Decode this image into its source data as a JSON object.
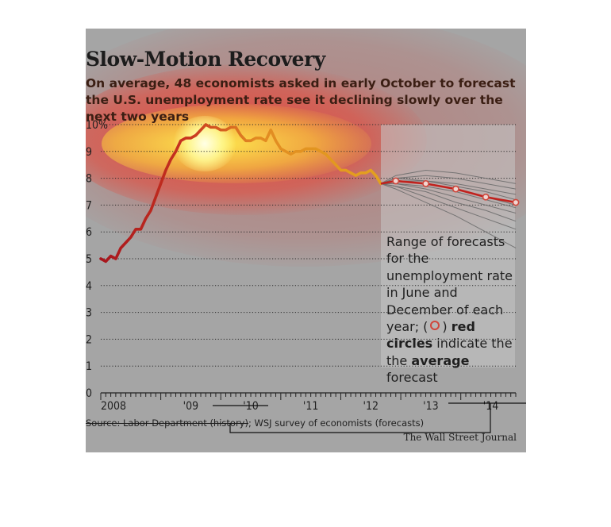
{
  "header": {
    "title": "Slow-Motion Recovery",
    "subtitle": "On average, 48 economists asked in early October to forecast the U.S. unemployment rate see it declining slowly over the next two years"
  },
  "legend_note": {
    "line1": "Range of forecasts for the unemployment rate in June and December of each year; (",
    "line2": ") ",
    "bold1": "red circles",
    "line3": " indicate the the ",
    "bold2": "average",
    "line4": " forecast"
  },
  "footer": {
    "source_struck": "Source: Labor Department (history)",
    "source_rest": "; WSJ survey of economists (forecasts)",
    "credit": "The Wall Street Journal"
  },
  "colors": {
    "history_start": "#a7161d",
    "history_end": "#e3a21f",
    "forecast_line": "#c1211d",
    "forecast_range": "#6e6e6e",
    "average_circle": "#d0463b",
    "background": "#a5a5a5"
  },
  "chart_data": {
    "type": "line",
    "x_start": "2008-01",
    "x_end": "2014-12",
    "ylim": [
      0,
      10
    ],
    "y_ticks": [
      {
        "value": 10,
        "label": "10%"
      },
      {
        "value": 9,
        "label": "9"
      },
      {
        "value": 8,
        "label": "8"
      },
      {
        "value": 7,
        "label": "7"
      },
      {
        "value": 6,
        "label": "6"
      },
      {
        "value": 5,
        "label": "5"
      },
      {
        "value": 4,
        "label": "4"
      },
      {
        "value": 3,
        "label": "3"
      },
      {
        "value": 2,
        "label": "2"
      },
      {
        "value": 1,
        "label": "1"
      },
      {
        "value": 0,
        "label": "0"
      }
    ],
    "x_ticks": [
      {
        "year": 2008,
        "label": "2008"
      },
      {
        "year": 2009,
        "label": "'09"
      },
      {
        "year": 2010,
        "label": "'10"
      },
      {
        "year": 2011,
        "label": "'11"
      },
      {
        "year": 2012,
        "label": "'12"
      },
      {
        "year": 2013,
        "label": "'13"
      },
      {
        "year": 2014,
        "label": "'14"
      }
    ],
    "grid": "dotted horizontal",
    "history": [
      {
        "x": "2008-01",
        "y": 5.0
      },
      {
        "x": "2008-02",
        "y": 4.9
      },
      {
        "x": "2008-03",
        "y": 5.1
      },
      {
        "x": "2008-04",
        "y": 5.0
      },
      {
        "x": "2008-05",
        "y": 5.4
      },
      {
        "x": "2008-06",
        "y": 5.6
      },
      {
        "x": "2008-07",
        "y": 5.8
      },
      {
        "x": "2008-08",
        "y": 6.1
      },
      {
        "x": "2008-09",
        "y": 6.1
      },
      {
        "x": "2008-10",
        "y": 6.5
      },
      {
        "x": "2008-11",
        "y": 6.8
      },
      {
        "x": "2008-12",
        "y": 7.3
      },
      {
        "x": "2009-01",
        "y": 7.8
      },
      {
        "x": "2009-02",
        "y": 8.3
      },
      {
        "x": "2009-03",
        "y": 8.7
      },
      {
        "x": "2009-04",
        "y": 9.0
      },
      {
        "x": "2009-05",
        "y": 9.4
      },
      {
        "x": "2009-06",
        "y": 9.5
      },
      {
        "x": "2009-07",
        "y": 9.5
      },
      {
        "x": "2009-08",
        "y": 9.6
      },
      {
        "x": "2009-09",
        "y": 9.8
      },
      {
        "x": "2009-10",
        "y": 10.0
      },
      {
        "x": "2009-11",
        "y": 9.9
      },
      {
        "x": "2009-12",
        "y": 9.9
      },
      {
        "x": "2010-01",
        "y": 9.8
      },
      {
        "x": "2010-02",
        "y": 9.8
      },
      {
        "x": "2010-03",
        "y": 9.9
      },
      {
        "x": "2010-04",
        "y": 9.9
      },
      {
        "x": "2010-05",
        "y": 9.6
      },
      {
        "x": "2010-06",
        "y": 9.4
      },
      {
        "x": "2010-07",
        "y": 9.4
      },
      {
        "x": "2010-08",
        "y": 9.5
      },
      {
        "x": "2010-09",
        "y": 9.5
      },
      {
        "x": "2010-10",
        "y": 9.4
      },
      {
        "x": "2010-11",
        "y": 9.8
      },
      {
        "x": "2010-12",
        "y": 9.4
      },
      {
        "x": "2011-01",
        "y": 9.1
      },
      {
        "x": "2011-02",
        "y": 9.0
      },
      {
        "x": "2011-03",
        "y": 8.9
      },
      {
        "x": "2011-04",
        "y": 9.0
      },
      {
        "x": "2011-05",
        "y": 9.0
      },
      {
        "x": "2011-06",
        "y": 9.1
      },
      {
        "x": "2011-07",
        "y": 9.1
      },
      {
        "x": "2011-08",
        "y": 9.1
      },
      {
        "x": "2011-09",
        "y": 9.0
      },
      {
        "x": "2011-10",
        "y": 8.9
      },
      {
        "x": "2011-11",
        "y": 8.7
      },
      {
        "x": "2011-12",
        "y": 8.5
      },
      {
        "x": "2012-01",
        "y": 8.3
      },
      {
        "x": "2012-02",
        "y": 8.3
      },
      {
        "x": "2012-03",
        "y": 8.2
      },
      {
        "x": "2012-04",
        "y": 8.1
      },
      {
        "x": "2012-05",
        "y": 8.2
      },
      {
        "x": "2012-06",
        "y": 8.2
      },
      {
        "x": "2012-07",
        "y": 8.3
      },
      {
        "x": "2012-08",
        "y": 8.1
      },
      {
        "x": "2012-09",
        "y": 7.8
      }
    ],
    "average_forecast": [
      {
        "x": "2012-09",
        "y": 7.8
      },
      {
        "x": "2012-12",
        "y": 7.9
      },
      {
        "x": "2013-06",
        "y": 7.8
      },
      {
        "x": "2013-12",
        "y": 7.6
      },
      {
        "x": "2014-06",
        "y": 7.3
      },
      {
        "x": "2014-12",
        "y": 7.1
      }
    ],
    "forecast_range": {
      "x": [
        "2012-09",
        "2012-12",
        "2013-06",
        "2013-12",
        "2014-06",
        "2014-12"
      ],
      "series": [
        [
          7.8,
          8.1,
          8.3,
          8.2,
          8.0,
          7.8
        ],
        [
          7.8,
          8.0,
          8.1,
          8.0,
          7.8,
          7.6
        ],
        [
          7.8,
          8.0,
          7.9,
          7.8,
          7.6,
          7.4
        ],
        [
          7.8,
          7.9,
          7.9,
          7.7,
          7.5,
          7.2
        ],
        [
          7.8,
          7.9,
          7.8,
          7.6,
          7.3,
          7.0
        ],
        [
          7.8,
          7.8,
          7.7,
          7.5,
          7.2,
          6.9
        ],
        [
          7.8,
          7.8,
          7.6,
          7.3,
          7.0,
          6.7
        ],
        [
          7.8,
          7.7,
          7.5,
          7.1,
          6.8,
          6.4
        ],
        [
          7.8,
          7.7,
          7.3,
          6.9,
          6.5,
          6.1
        ],
        [
          7.8,
          7.6,
          7.1,
          6.6,
          6.0,
          5.4
        ]
      ]
    }
  }
}
